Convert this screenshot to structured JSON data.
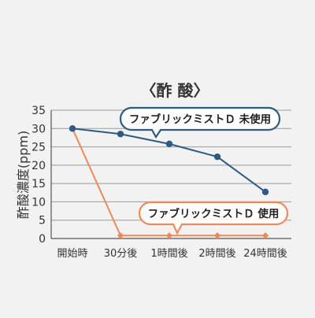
{
  "chart_data": {
    "type": "line",
    "title": "〈酢 酸〉",
    "xlabel": "",
    "ylabel": "酢酸濃度(ppm)",
    "categories": [
      "開始時",
      "30分後",
      "1時間後",
      "2時間後",
      "24時間後"
    ],
    "ylim": [
      0,
      35
    ],
    "yticks": [
      0,
      5,
      10,
      15,
      20,
      25,
      30,
      35
    ],
    "grid": true,
    "series": [
      {
        "name": "ファブリックミストＤ 未使用",
        "color": "#2f5a82",
        "marker": "circle",
        "values": [
          30,
          28.5,
          25.8,
          22.3,
          12.7
        ]
      },
      {
        "name": "ファブリックミストＤ 使用",
        "color": "#ee8a5a",
        "marker": "diamond",
        "values": [
          30,
          0.8,
          0.8,
          0.8,
          0.8
        ]
      }
    ]
  }
}
